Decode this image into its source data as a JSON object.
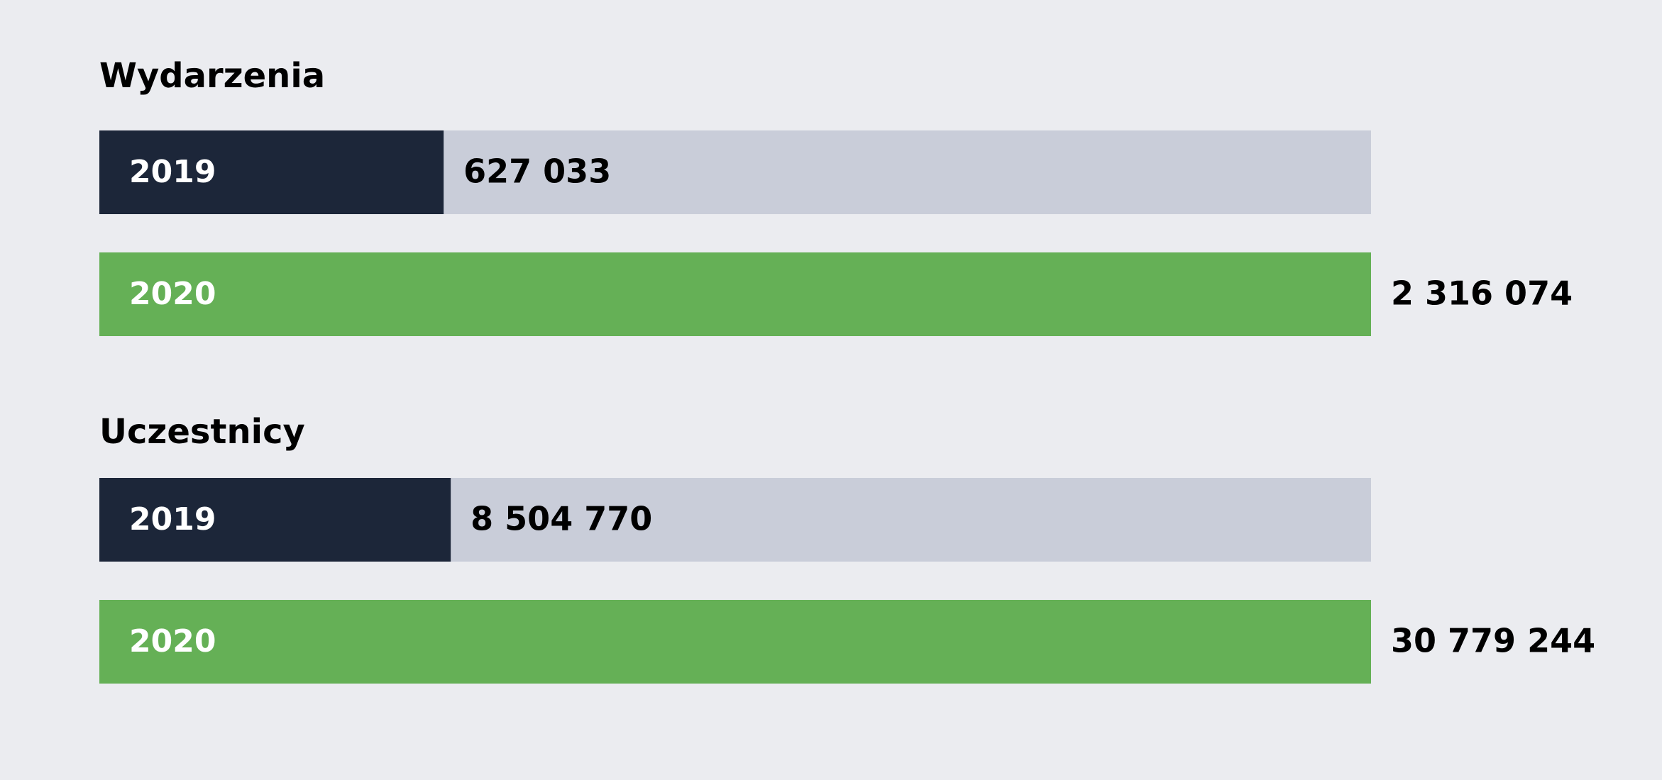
{
  "chart_data": [
    {
      "type": "hbar",
      "title": "Wydarzenia",
      "categories": [
        "2019",
        "2020"
      ],
      "values": [
        627033,
        2316074
      ],
      "value_labels": [
        "627 033",
        "2 316 074"
      ],
      "colors": [
        "#1c2639",
        "#65b056"
      ]
    },
    {
      "type": "hbar",
      "title": "Uczestnicy",
      "categories": [
        "2019",
        "2020"
      ],
      "values": [
        8504770,
        30779244
      ],
      "value_labels": [
        "8 504 770",
        "30 779 244"
      ],
      "colors": [
        "#1c2639",
        "#65b056"
      ]
    }
  ]
}
